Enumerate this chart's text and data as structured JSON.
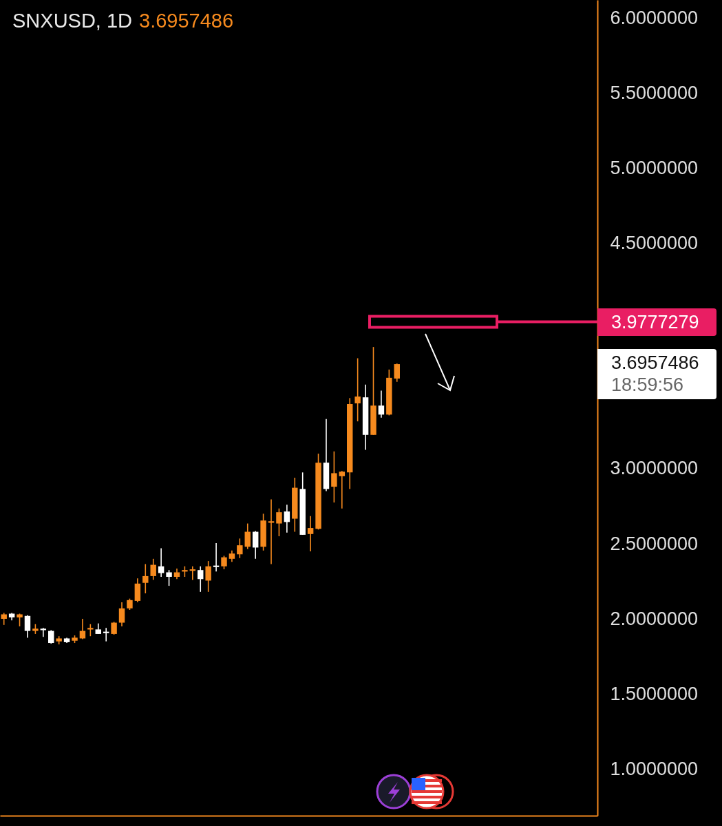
{
  "chart_data": {
    "type": "candlestick",
    "title": "SNXUSD, 1D",
    "subtitle": "3.6957486",
    "categories": [
      null,
      null,
      null,
      null,
      null,
      null,
      null,
      null,
      null,
      null,
      null,
      null,
      null,
      null,
      null,
      null,
      null,
      null,
      null,
      null,
      null,
      null,
      null,
      null,
      null,
      null,
      null,
      null,
      null,
      null,
      null,
      null,
      null,
      null,
      null,
      null,
      null,
      null,
      null,
      null,
      null,
      null,
      null,
      null,
      null,
      null,
      null,
      null,
      null,
      null,
      null,
      null,
      null,
      null,
      null,
      null,
      null,
      null,
      null,
      null,
      null,
      null,
      null,
      null,
      null,
      null,
      null,
      null,
      null,
      null,
      null,
      null,
      null,
      null,
      null,
      null
    ],
    "ohlc": [
      [
        2.0,
        2.04,
        1.96,
        2.03
      ],
      [
        2.035,
        2.04,
        1.99,
        2.01
      ],
      [
        2.01,
        2.035,
        1.95,
        2.03
      ],
      [
        2.02,
        2.025,
        1.875,
        1.92
      ],
      [
        1.92,
        1.965,
        1.9,
        1.935
      ],
      [
        1.935,
        1.94,
        1.88,
        1.925
      ],
      [
        1.92,
        1.925,
        1.835,
        1.84
      ],
      [
        1.85,
        1.885,
        1.83,
        1.87
      ],
      [
        1.87,
        1.875,
        1.84,
        1.845
      ],
      [
        1.855,
        1.89,
        1.84,
        1.875
      ],
      [
        1.87,
        2.0,
        1.865,
        1.92
      ],
      [
        1.93,
        1.965,
        1.885,
        1.94
      ],
      [
        1.93,
        1.97,
        1.9,
        1.9
      ],
      [
        1.915,
        1.94,
        1.85,
        1.905
      ],
      [
        1.9,
        1.98,
        1.895,
        1.975
      ],
      [
        1.975,
        2.11,
        1.95,
        2.07
      ],
      [
        2.07,
        2.135,
        2.06,
        2.125
      ],
      [
        2.12,
        2.27,
        2.11,
        2.235
      ],
      [
        2.24,
        2.365,
        2.17,
        2.285
      ],
      [
        2.285,
        2.4,
        2.26,
        2.36
      ],
      [
        2.35,
        2.47,
        2.28,
        2.305
      ],
      [
        2.31,
        2.325,
        2.22,
        2.28
      ],
      [
        2.28,
        2.335,
        2.265,
        2.31
      ],
      [
        2.315,
        2.35,
        2.28,
        2.325
      ],
      [
        2.32,
        2.35,
        2.26,
        2.33
      ],
      [
        2.325,
        2.35,
        2.18,
        2.265
      ],
      [
        2.255,
        2.385,
        2.18,
        2.35
      ],
      [
        2.355,
        2.505,
        2.315,
        2.345
      ],
      [
        2.35,
        2.42,
        2.33,
        2.41
      ],
      [
        2.4,
        2.455,
        2.38,
        2.435
      ],
      [
        2.43,
        2.535,
        2.405,
        2.49
      ],
      [
        2.48,
        2.635,
        2.465,
        2.58
      ],
      [
        2.58,
        2.585,
        2.4,
        2.475
      ],
      [
        2.48,
        2.7,
        2.455,
        2.655
      ],
      [
        2.64,
        2.795,
        2.365,
        2.65
      ],
      [
        2.635,
        2.735,
        2.55,
        2.71
      ],
      [
        2.715,
        2.76,
        2.575,
        2.645
      ],
      [
        2.667,
        2.94,
        2.58,
        2.873
      ],
      [
        2.865,
        2.975,
        2.56,
        2.56
      ],
      [
        2.565,
        2.685,
        2.45,
        2.605
      ],
      [
        2.6,
        3.1,
        2.595,
        3.04
      ],
      [
        3.04,
        3.33,
        2.85,
        2.865
      ],
      [
        2.88,
        3.115,
        2.775,
        2.97
      ],
      [
        2.95,
        2.985,
        2.735,
        2.98
      ],
      [
        2.975,
        3.47,
        2.865,
        3.43
      ],
      [
        3.435,
        3.735,
        3.315,
        3.48
      ],
      [
        3.475,
        3.56,
        3.125,
        3.225
      ],
      [
        3.225,
        3.81,
        3.225,
        3.42
      ],
      [
        3.42,
        3.52,
        3.34,
        3.36
      ],
      [
        3.36,
        3.66,
        3.355,
        3.605
      ],
      [
        3.6,
        3.7,
        3.578,
        3.6957486
      ],
      null,
      null,
      null,
      null,
      null,
      null,
      null,
      null,
      null,
      null,
      null,
      null,
      null,
      null,
      null,
      null,
      null,
      null,
      null,
      null,
      null,
      null,
      null,
      null,
      null
    ],
    "colors": [
      "#f68a1e",
      "#ffffff",
      "#f68a1e",
      "#ffffff",
      "#f68a1e",
      "#ffffff",
      "#ffffff",
      "#f68a1e",
      "#ffffff",
      "#f68a1e",
      "#f68a1e",
      "#f68a1e",
      "#ffffff",
      "#ffffff",
      "#f68a1e",
      "#f68a1e",
      "#f68a1e",
      "#f68a1e",
      "#f68a1e",
      "#f68a1e",
      "#ffffff",
      "#ffffff",
      "#f68a1e",
      "#f68a1e",
      "#f68a1e",
      "#ffffff",
      "#f68a1e",
      "#ffffff",
      "#f68a1e",
      "#f68a1e",
      "#f68a1e",
      "#f68a1e",
      "#ffffff",
      "#f68a1e",
      "#f68a1e",
      "#f68a1e",
      "#ffffff",
      "#f68a1e",
      "#ffffff",
      "#f68a1e",
      "#f68a1e",
      "#ffffff",
      "#f68a1e",
      "#f68a1e",
      "#f68a1e",
      "#f68a1e",
      "#ffffff",
      "#f68a1e",
      "#ffffff",
      "#f68a1e",
      "#f68a1e",
      null,
      null,
      null,
      null,
      null,
      null,
      null,
      null,
      null,
      null,
      null,
      null,
      null,
      null,
      null,
      null,
      null,
      null,
      null,
      null,
      null,
      null,
      null,
      null,
      null
    ],
    "ylim": [
      0.69,
      6.12
    ],
    "yticks": [
      {
        "value": 1,
        "label": "1.0000000"
      },
      {
        "value": 1.5,
        "label": "1.5000000"
      },
      {
        "value": 2,
        "label": "2.0000000"
      },
      {
        "value": 2.5,
        "label": "2.5000000"
      },
      {
        "value": 3,
        "label": "3.0000000"
      },
      {
        "value": 4.5,
        "label": "4.5000000"
      },
      {
        "value": 5,
        "label": "5.0000000"
      },
      {
        "value": 5.5,
        "label": "5.5000000"
      },
      {
        "value": 6,
        "label": "6.0000000"
      }
    ],
    "ref_lines": [
      {
        "axis": "y",
        "value": 3.9777279,
        "label": "3.9777279",
        "color": "#e91e63",
        "line_style": "solid"
      }
    ],
    "annotations": [
      "3.6957486",
      "18:59:56"
    ],
    "tick_labels": "y",
    "grid": false
  }
}
